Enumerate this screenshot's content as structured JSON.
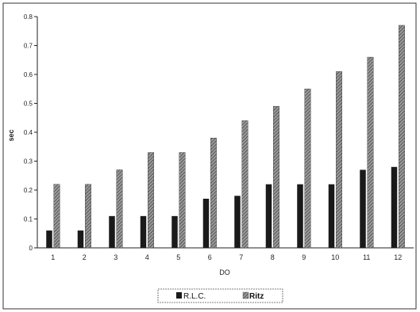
{
  "chart_data": {
    "type": "bar",
    "title": "",
    "xlabel": "DO",
    "ylabel": "sec",
    "categories": [
      "1",
      "2",
      "3",
      "4",
      "5",
      "6",
      "7",
      "8",
      "9",
      "10",
      "11",
      "12"
    ],
    "series": [
      {
        "name": "R.L.C.",
        "color": "#1a1a1a",
        "pattern": "solid",
        "values": [
          0.06,
          0.06,
          0.11,
          0.11,
          0.11,
          0.17,
          0.18,
          0.22,
          0.22,
          0.22,
          0.27,
          0.28
        ]
      },
      {
        "name": "Ritz",
        "color": "#6e6e6e",
        "pattern": "hatched",
        "values": [
          0.22,
          0.22,
          0.27,
          0.33,
          0.33,
          0.38,
          0.44,
          0.49,
          0.55,
          0.61,
          0.66,
          0.77
        ]
      }
    ],
    "ylim": [
      0,
      0.8
    ],
    "yticks": [
      "0",
      "0.1",
      "0.2",
      "0.3",
      "0.4",
      "0.5",
      "0.6",
      "0.7",
      "0.8"
    ],
    "grid": false,
    "legend_position": "bottom-center"
  }
}
